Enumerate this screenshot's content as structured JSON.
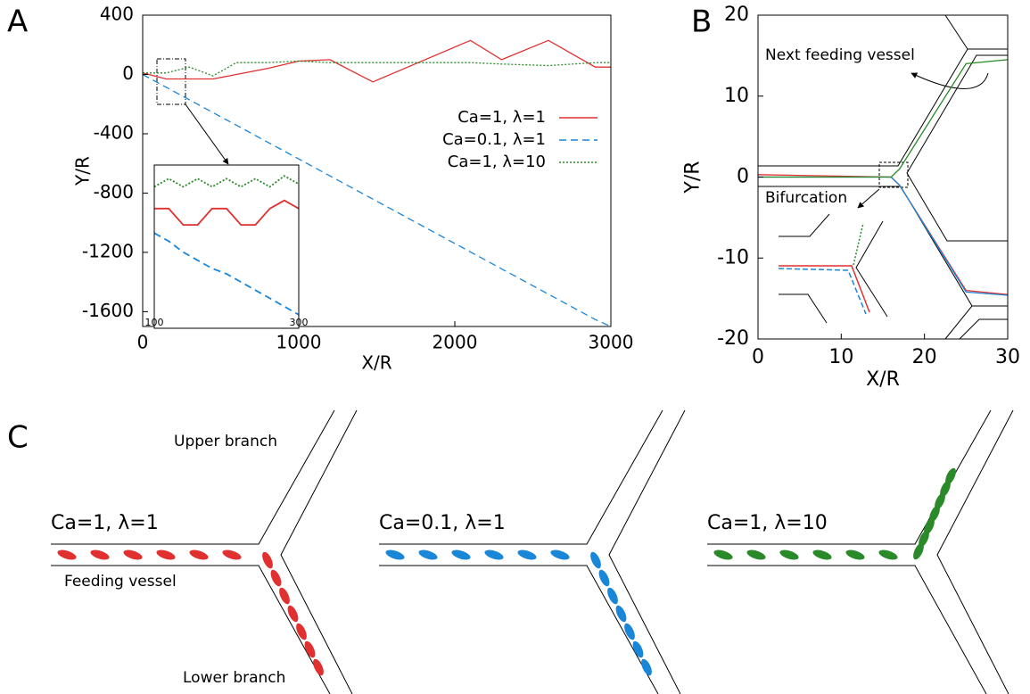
{
  "panel_labels": [
    "A",
    "B",
    "C"
  ],
  "chart_data": [
    {
      "type": "line",
      "x_label": "X/R",
      "y_label": "Y/R",
      "xlim": [
        0,
        3000
      ],
      "ylim": [
        -1700,
        400
      ],
      "xticks": [
        0,
        1000,
        2000,
        3000
      ],
      "yticks": [
        400,
        0,
        -400,
        -800,
        -1200,
        -1600
      ],
      "legend": "right",
      "x": [
        0,
        150,
        300,
        450,
        600,
        800,
        1000,
        1200,
        1475,
        2100,
        2300,
        2600,
        2900,
        3000
      ],
      "series": [
        {
          "name": "Ca=1, λ=1",
          "color": "#e03030",
          "dash": "solid",
          "values": [
            10,
            -30,
            -30,
            -30,
            0,
            40,
            90,
            100,
            -50,
            230,
            100,
            230,
            50,
            50
          ]
        },
        {
          "name": "Ca=0.1, λ=1",
          "color": "#1a86d8",
          "dash": "dashed",
          "values": [
            0,
            -86,
            -171,
            -257,
            -342,
            -456,
            -570,
            -684,
            -841,
            -1197,
            -1311,
            -1482,
            -1653,
            -1700
          ]
        },
        {
          "name": "Ca=1, λ=10",
          "color": "#2a8a2a",
          "dash": "dotted",
          "values": [
            10,
            10,
            50,
            -10,
            80,
            80,
            90,
            80,
            80,
            80,
            70,
            60,
            80,
            80
          ]
        }
      ]
    },
    {
      "type": "line",
      "xlim": [
        100,
        300
      ],
      "ylim": [
        -200,
        100
      ],
      "xticks": [
        100,
        300
      ],
      "x": [
        100,
        120,
        140,
        160,
        180,
        200,
        220,
        240,
        260,
        280,
        300
      ],
      "series": [
        {
          "color": "#e03030",
          "dash": "solid",
          "values": [
            20,
            20,
            -10,
            -10,
            20,
            20,
            -10,
            -10,
            20,
            35,
            20
          ]
        },
        {
          "color": "#1a86d8",
          "dash": "dashed",
          "values": [
            -25,
            -40,
            -60,
            -75,
            -90,
            -100,
            -115,
            -130,
            -145,
            -160,
            -175
          ]
        },
        {
          "color": "#2a8a2a",
          "dash": "dotted",
          "values": [
            60,
            75,
            60,
            75,
            60,
            75,
            60,
            75,
            60,
            80,
            65
          ]
        }
      ]
    },
    {
      "type": "line",
      "x_label": "X/R",
      "y_label": "Y/R",
      "xlim": [
        0,
        30
      ],
      "ylim": [
        -20,
        20
      ],
      "xticks": [
        0,
        10,
        20,
        30
      ],
      "yticks": [
        20,
        10,
        0,
        -10,
        -20
      ],
      "annotations": [
        "Next feeding vessel",
        "Bifurcation"
      ],
      "x": [
        0,
        16,
        17,
        25,
        30
      ],
      "series": [
        {
          "color": "#e03030",
          "dash": "solid",
          "values": [
            0.3,
            0,
            -1,
            -14,
            -14.5
          ]
        },
        {
          "color": "#1a86d8",
          "dash": "solid",
          "values": [
            0,
            0,
            -1,
            -14.2,
            -14.6
          ]
        },
        {
          "color": "#2a8a2a",
          "dash": "solid",
          "values": [
            0,
            0,
            1,
            14,
            14.5
          ]
        }
      ]
    }
  ],
  "panel_c": {
    "cases": [
      "Ca=1, λ=1",
      "Ca=0.1, λ=1",
      "Ca=1, λ=10"
    ],
    "upper_branch": "Upper branch",
    "feeding_vessel": "Feeding vessel",
    "lower_branch": "Lower branch"
  }
}
